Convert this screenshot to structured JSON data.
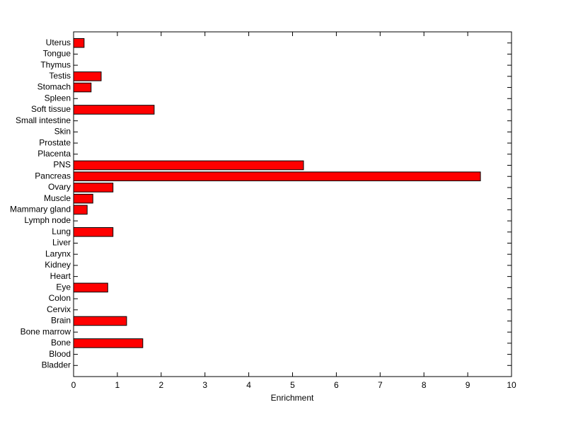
{
  "chart_data": {
    "type": "barh",
    "x_label": "Enrichment",
    "categories": [
      "Bladder",
      "Blood",
      "Bone",
      "Bone marrow",
      "Brain",
      "Cervix",
      "Colon",
      "Eye",
      "Heart",
      "Kidney",
      "Larynx",
      "Liver",
      "Lung",
      "Lymph node",
      "Mammary gland",
      "Muscle",
      "Ovary",
      "Pancreas",
      "PNS",
      "Placenta",
      "Prostate",
      "Skin",
      "Small intestine",
      "Soft tissue",
      "Spleen",
      "Stomach",
      "Testis",
      "Thymus",
      "Tongue",
      "Uterus"
    ],
    "values": [
      0,
      0,
      1.58,
      0,
      1.21,
      0,
      0,
      0.78,
      0,
      0,
      0,
      0,
      0.9,
      0,
      0.31,
      0.44,
      0.9,
      9.29,
      5.25,
      0,
      0,
      0,
      0,
      1.84,
      0,
      0.4,
      0.63,
      0,
      0,
      0.24
    ],
    "color": "#ff0000",
    "xlim": [
      0,
      10
    ],
    "xticks": [
      0,
      1,
      2,
      3,
      4,
      5,
      6,
      7,
      8,
      9,
      10
    ]
  }
}
